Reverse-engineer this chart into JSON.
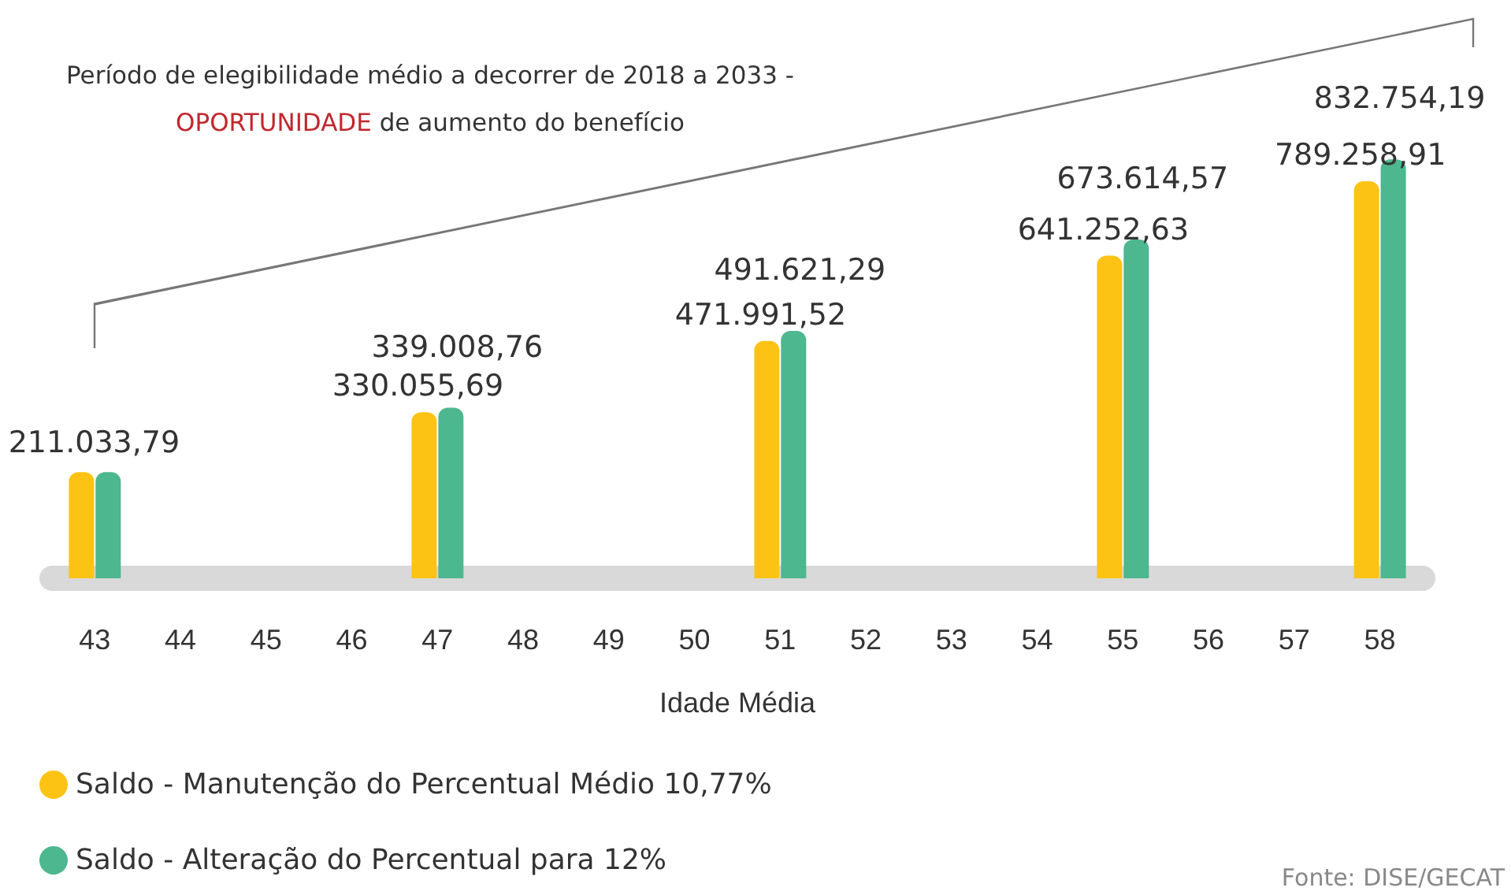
{
  "chart_data": {
    "type": "bar",
    "xlabel": "Idade Média",
    "categories": [
      "43",
      "44",
      "45",
      "46",
      "47",
      "48",
      "49",
      "50",
      "51",
      "52",
      "53",
      "54",
      "55",
      "56",
      "57",
      "58"
    ],
    "series": [
      {
        "name": "Saldo - Manutenção do Percentual Médio 10,77%",
        "color": "#fdc314",
        "values": [
          211033.79,
          null,
          null,
          null,
          330055.69,
          null,
          null,
          null,
          471991.52,
          null,
          null,
          null,
          641252.63,
          null,
          null,
          789258.91
        ],
        "value_labels": [
          "211.033,79",
          null,
          null,
          null,
          "330.055,69",
          null,
          null,
          null,
          "471.991,52",
          null,
          null,
          null,
          "641.252,63",
          null,
          null,
          "789.258,91"
        ]
      },
      {
        "name": "Saldo - Alteração do Percentual para 12%",
        "color": "#4db78f",
        "values": [
          211033.79,
          null,
          null,
          null,
          339008.76,
          null,
          null,
          null,
          491621.29,
          null,
          null,
          null,
          673614.57,
          null,
          null,
          832754.19
        ],
        "value_labels": [
          null,
          null,
          null,
          null,
          "339.008,76",
          null,
          null,
          null,
          "491.621,29",
          null,
          null,
          null,
          "673.614,57",
          null,
          null,
          "832.754,19"
        ]
      }
    ],
    "legend": "bottom left",
    "grid": false,
    "annotations": [
      "Período de elegibilidade médio a decorrer de 2018 a 2033 - ",
      "OPORTUNIDADE",
      " de aumento do benefício",
      "Fonte: DISE/GECAT"
    ]
  }
}
